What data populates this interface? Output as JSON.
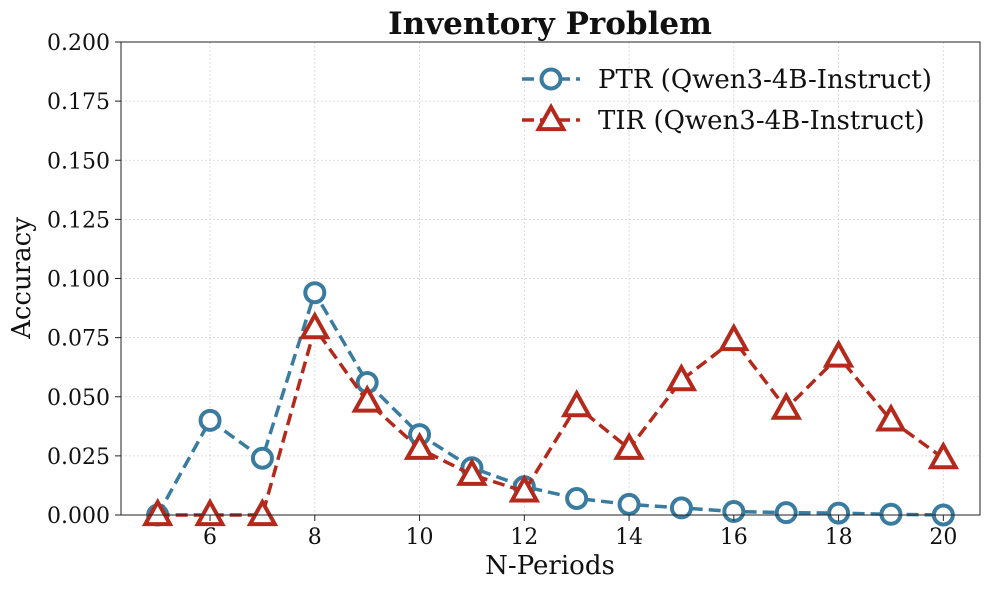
{
  "chart_data": {
    "type": "line",
    "title": "Inventory Problem",
    "xlabel": "N-Periods",
    "ylabel": "Accuracy",
    "xlim": [
      4.3,
      20.7
    ],
    "ylim": [
      0,
      0.2
    ],
    "xticks": [
      6,
      8,
      10,
      12,
      14,
      16,
      18,
      20
    ],
    "xtick_labels": [
      "6",
      "8",
      "10",
      "12",
      "14",
      "16",
      "18",
      "20"
    ],
    "yticks": [
      0,
      0.025,
      0.05,
      0.075,
      0.1,
      0.125,
      0.15,
      0.175,
      0.2
    ],
    "ytick_labels": [
      "0.000",
      "0.025",
      "0.050",
      "0.075",
      "0.100",
      "0.125",
      "0.150",
      "0.175",
      "0.200"
    ],
    "grid": true,
    "legend_position": "top-right",
    "x": [
      5,
      6,
      7,
      8,
      9,
      10,
      11,
      12,
      13,
      14,
      15,
      16,
      17,
      18,
      19,
      20
    ],
    "series": [
      {
        "name": "PTR (Qwen3-4B-Instruct)",
        "marker": "circle",
        "color": "#3a7ca0",
        "values": [
          0.0,
          0.04,
          0.024,
          0.094,
          0.056,
          0.034,
          0.02,
          0.012,
          0.007,
          0.0045,
          0.003,
          0.0015,
          0.001,
          0.0008,
          0.0003,
          0.0
        ]
      },
      {
        "name": "TIR (Qwen3-4B-Instruct)",
        "marker": "triangle",
        "color": "#b32a1d",
        "values": [
          0.0,
          0.0,
          0.0,
          0.079,
          0.048,
          0.028,
          0.017,
          0.01,
          0.046,
          0.028,
          0.057,
          0.074,
          0.045,
          0.067,
          0.04,
          0.024
        ]
      }
    ]
  }
}
